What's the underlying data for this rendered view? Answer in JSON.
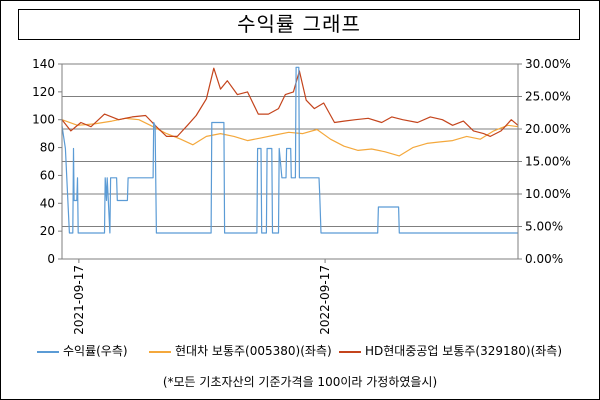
{
  "title": "수익률 그래프",
  "footnote": "(*모든 기초자산의 기준가격을 100이라 가정하였을시)",
  "colors": {
    "return_series": "#5b9bd5",
    "hyundai_motor": "#f4a83c",
    "hd_heavy": "#c4441c",
    "grid": "#7f7f7f",
    "axis": "#7f7f7f"
  },
  "chart_data": {
    "type": "line",
    "x_range": [
      "2021-08-23",
      "2023-06-30"
    ],
    "x_ticks": [
      "2021-09-17",
      "2022-09-17"
    ],
    "left_axis": {
      "min": 0,
      "max": 140,
      "step": 20,
      "tick_labels": [
        "0",
        "20",
        "40",
        "60",
        "80",
        "100",
        "120",
        "140"
      ]
    },
    "right_axis": {
      "min": 0,
      "max": 30,
      "step": 5,
      "tick_labels": [
        "0.00%",
        "5.00%",
        "10.00%",
        "15.00%",
        "20.00%",
        "25.00%",
        "30.00%"
      ]
    },
    "grid": "horizontal",
    "legend_position": "bottom",
    "series": [
      {
        "name": "수익률(우측)",
        "axis": "right",
        "color": "#5b9bd5",
        "points": [
          [
            "2021-08-23",
            20.5
          ],
          [
            "2021-08-28",
            17
          ],
          [
            "2021-09-03",
            4
          ],
          [
            "2021-09-08",
            4
          ],
          [
            "2021-09-09",
            17
          ],
          [
            "2021-09-10",
            9
          ],
          [
            "2021-09-14",
            9
          ],
          [
            "2021-09-15",
            12.5
          ],
          [
            "2021-09-16",
            4
          ],
          [
            "2021-10-25",
            4
          ],
          [
            "2021-10-26",
            12.5
          ],
          [
            "2021-10-28",
            9
          ],
          [
            "2021-10-29",
            12.5
          ],
          [
            "2021-11-02",
            4
          ],
          [
            "2021-11-03",
            12.5
          ],
          [
            "2021-11-12",
            12.5
          ],
          [
            "2021-11-13",
            9
          ],
          [
            "2021-11-28",
            9
          ],
          [
            "2021-11-29",
            12.5
          ],
          [
            "2022-01-05",
            12.5
          ],
          [
            "2022-01-06",
            21
          ],
          [
            "2022-01-08",
            20.5
          ],
          [
            "2022-01-10",
            4
          ],
          [
            "2022-04-01",
            4
          ],
          [
            "2022-04-02",
            21
          ],
          [
            "2022-04-20",
            21
          ],
          [
            "2022-04-21",
            4
          ],
          [
            "2022-06-08",
            4
          ],
          [
            "2022-06-09",
            17
          ],
          [
            "2022-06-14",
            17
          ],
          [
            "2022-06-15",
            4
          ],
          [
            "2022-06-22",
            4
          ],
          [
            "2022-06-23",
            17
          ],
          [
            "2022-06-30",
            17
          ],
          [
            "2022-07-01",
            4
          ],
          [
            "2022-07-10",
            4
          ],
          [
            "2022-07-11",
            17
          ],
          [
            "2022-07-15",
            12.5
          ],
          [
            "2022-07-21",
            12.5
          ],
          [
            "2022-07-22",
            17
          ],
          [
            "2022-07-28",
            17
          ],
          [
            "2022-07-29",
            12.5
          ],
          [
            "2022-08-04",
            12.5
          ],
          [
            "2022-08-05",
            29.5
          ],
          [
            "2022-08-09",
            29.5
          ],
          [
            "2022-08-10",
            12.5
          ],
          [
            "2022-09-08",
            12.5
          ],
          [
            "2022-09-09",
            10
          ],
          [
            "2022-09-11",
            4
          ],
          [
            "2022-12-04",
            4
          ],
          [
            "2022-12-05",
            8
          ],
          [
            "2022-12-20",
            8
          ],
          [
            "2022-12-21",
            8
          ],
          [
            "2023-01-04",
            8
          ],
          [
            "2023-01-05",
            4
          ],
          [
            "2023-06-30",
            4
          ]
        ]
      },
      {
        "name": "현대차 보통주(005380)(좌측)",
        "axis": "left",
        "color": "#f4a83c",
        "points": [
          [
            "2021-08-23",
            100
          ],
          [
            "2021-09-15",
            96
          ],
          [
            "2021-10-10",
            97
          ],
          [
            "2021-11-05",
            99
          ],
          [
            "2021-11-25",
            101
          ],
          [
            "2021-12-15",
            100
          ],
          [
            "2022-01-05",
            95
          ],
          [
            "2022-01-25",
            90
          ],
          [
            "2022-02-15",
            86
          ],
          [
            "2022-03-05",
            82
          ],
          [
            "2022-03-25",
            88
          ],
          [
            "2022-04-15",
            90
          ],
          [
            "2022-05-05",
            88
          ],
          [
            "2022-05-25",
            85
          ],
          [
            "2022-06-15",
            87
          ],
          [
            "2022-07-05",
            89
          ],
          [
            "2022-07-25",
            91
          ],
          [
            "2022-08-15",
            90
          ],
          [
            "2022-09-05",
            93
          ],
          [
            "2022-09-25",
            86
          ],
          [
            "2022-10-15",
            81
          ],
          [
            "2022-11-05",
            78
          ],
          [
            "2022-11-25",
            79
          ],
          [
            "2022-12-15",
            77
          ],
          [
            "2023-01-05",
            74
          ],
          [
            "2023-01-25",
            80
          ],
          [
            "2023-02-15",
            83
          ],
          [
            "2023-03-05",
            84
          ],
          [
            "2023-03-25",
            85
          ],
          [
            "2023-04-15",
            88
          ],
          [
            "2023-05-05",
            86
          ],
          [
            "2023-05-25",
            92
          ],
          [
            "2023-06-15",
            96
          ],
          [
            "2023-06-30",
            95
          ]
        ]
      },
      {
        "name": "HD현대중공업 보통주(329180)(좌측)",
        "axis": "left",
        "color": "#c4441c",
        "points": [
          [
            "2021-08-23",
            100
          ],
          [
            "2021-09-05",
            92
          ],
          [
            "2021-09-20",
            98
          ],
          [
            "2021-10-05",
            95
          ],
          [
            "2021-10-25",
            104
          ],
          [
            "2021-11-15",
            100
          ],
          [
            "2021-12-05",
            102
          ],
          [
            "2021-12-25",
            103
          ],
          [
            "2022-01-10",
            95
          ],
          [
            "2022-01-25",
            88
          ],
          [
            "2022-02-10",
            88
          ],
          [
            "2022-02-25",
            96
          ],
          [
            "2022-03-10",
            103
          ],
          [
            "2022-03-25",
            115
          ],
          [
            "2022-04-05",
            137
          ],
          [
            "2022-04-15",
            122
          ],
          [
            "2022-04-25",
            128
          ],
          [
            "2022-05-10",
            118
          ],
          [
            "2022-05-25",
            120
          ],
          [
            "2022-06-10",
            104
          ],
          [
            "2022-06-25",
            104
          ],
          [
            "2022-07-10",
            108
          ],
          [
            "2022-07-20",
            118
          ],
          [
            "2022-08-01",
            120
          ],
          [
            "2022-08-10",
            135
          ],
          [
            "2022-08-20",
            114
          ],
          [
            "2022-09-01",
            108
          ],
          [
            "2022-09-15",
            112
          ],
          [
            "2022-10-01",
            98
          ],
          [
            "2022-10-15",
            99
          ],
          [
            "2022-11-01",
            100
          ],
          [
            "2022-11-20",
            101
          ],
          [
            "2022-12-10",
            98
          ],
          [
            "2022-12-25",
            102
          ],
          [
            "2023-01-10",
            100
          ],
          [
            "2023-02-01",
            98
          ],
          [
            "2023-02-20",
            102
          ],
          [
            "2023-03-10",
            100
          ],
          [
            "2023-03-25",
            96
          ],
          [
            "2023-04-10",
            99
          ],
          [
            "2023-04-25",
            92
          ],
          [
            "2023-05-10",
            90
          ],
          [
            "2023-05-20",
            88
          ],
          [
            "2023-06-05",
            92
          ],
          [
            "2023-06-20",
            100
          ],
          [
            "2023-06-30",
            96
          ]
        ]
      }
    ]
  }
}
